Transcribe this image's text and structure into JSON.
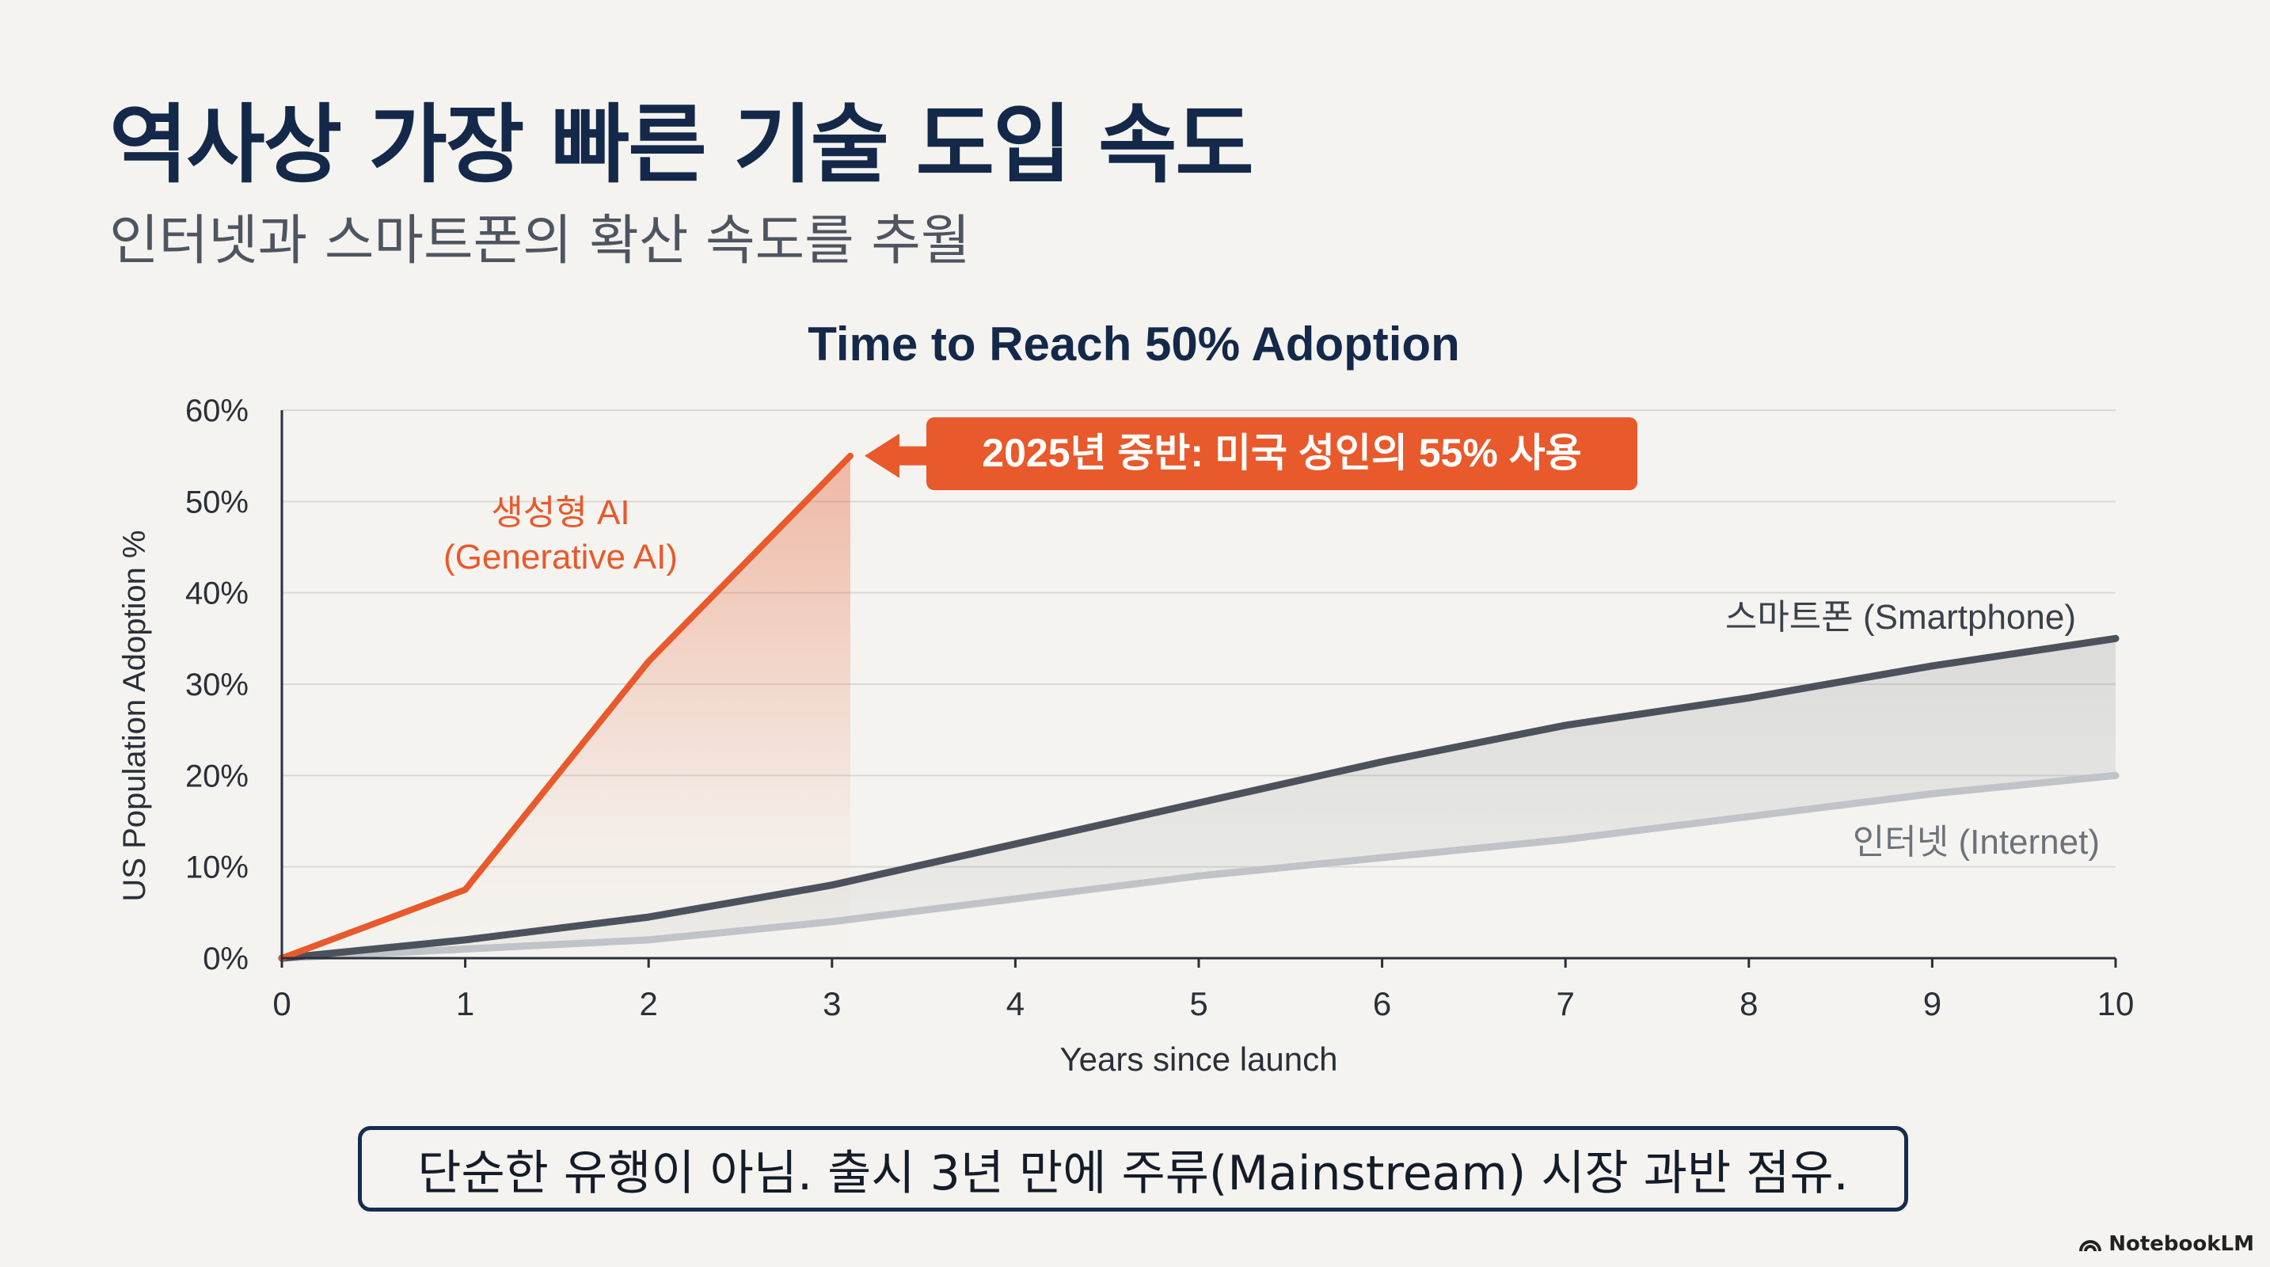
{
  "page": {
    "title": "역사상 가장 빠른 기술 도입 속도",
    "subtitle": "인터넷과 스마트폰의 확산 속도를 추월",
    "takeaway": "단순한 유행이 아님. 출시 3년 만에 주류(Mainstream) 시장 과반 점유.",
    "brand": "NotebookLM",
    "brand_icon": "notebooklm-logo-icon"
  },
  "chart_data": {
    "type": "line",
    "title": "Time to Reach 50% Adoption",
    "xlabel": "Years since launch",
    "ylabel": "US Population Adoption %",
    "xlim": [
      0,
      10
    ],
    "ylim": [
      0,
      60
    ],
    "x_ticks": [
      0,
      1,
      2,
      3,
      4,
      5,
      6,
      7,
      8,
      9,
      10
    ],
    "y_ticks": [
      0,
      10,
      20,
      30,
      40,
      50,
      60
    ],
    "y_tick_labels": [
      "0%",
      "10%",
      "20%",
      "30%",
      "40%",
      "50%",
      "60%"
    ],
    "grid": true,
    "series": [
      {
        "name": "생성형 AI\n(Generative AI)",
        "label_lines": [
          "생성형 AI",
          "(Generative AI)"
        ],
        "color": "#e8592b",
        "x": [
          0,
          1,
          2,
          3.1
        ],
        "values": [
          0,
          7.5,
          32.5,
          55
        ]
      },
      {
        "name": "스마트폰 (Smartphone)",
        "color": "#4b525c",
        "x": [
          0,
          1,
          2,
          3,
          4,
          5,
          6,
          7,
          8,
          9,
          10
        ],
        "values": [
          0,
          2,
          4.5,
          8,
          12.5,
          17,
          21.5,
          25.5,
          28.5,
          32,
          35
        ]
      },
      {
        "name": "인터넷 (Internet)",
        "color": "#c0c3c8",
        "x": [
          0,
          1,
          2,
          3,
          4,
          5,
          6,
          7,
          8,
          9,
          10
        ],
        "values": [
          0,
          1,
          2,
          4,
          6.5,
          9,
          11,
          13,
          15.5,
          18,
          20
        ]
      }
    ],
    "annotations": [
      {
        "text": "2025년 중반: 미국 성인의 55% 사용",
        "x": 3.1,
        "y": 55,
        "color": "#e8592b"
      }
    ]
  }
}
